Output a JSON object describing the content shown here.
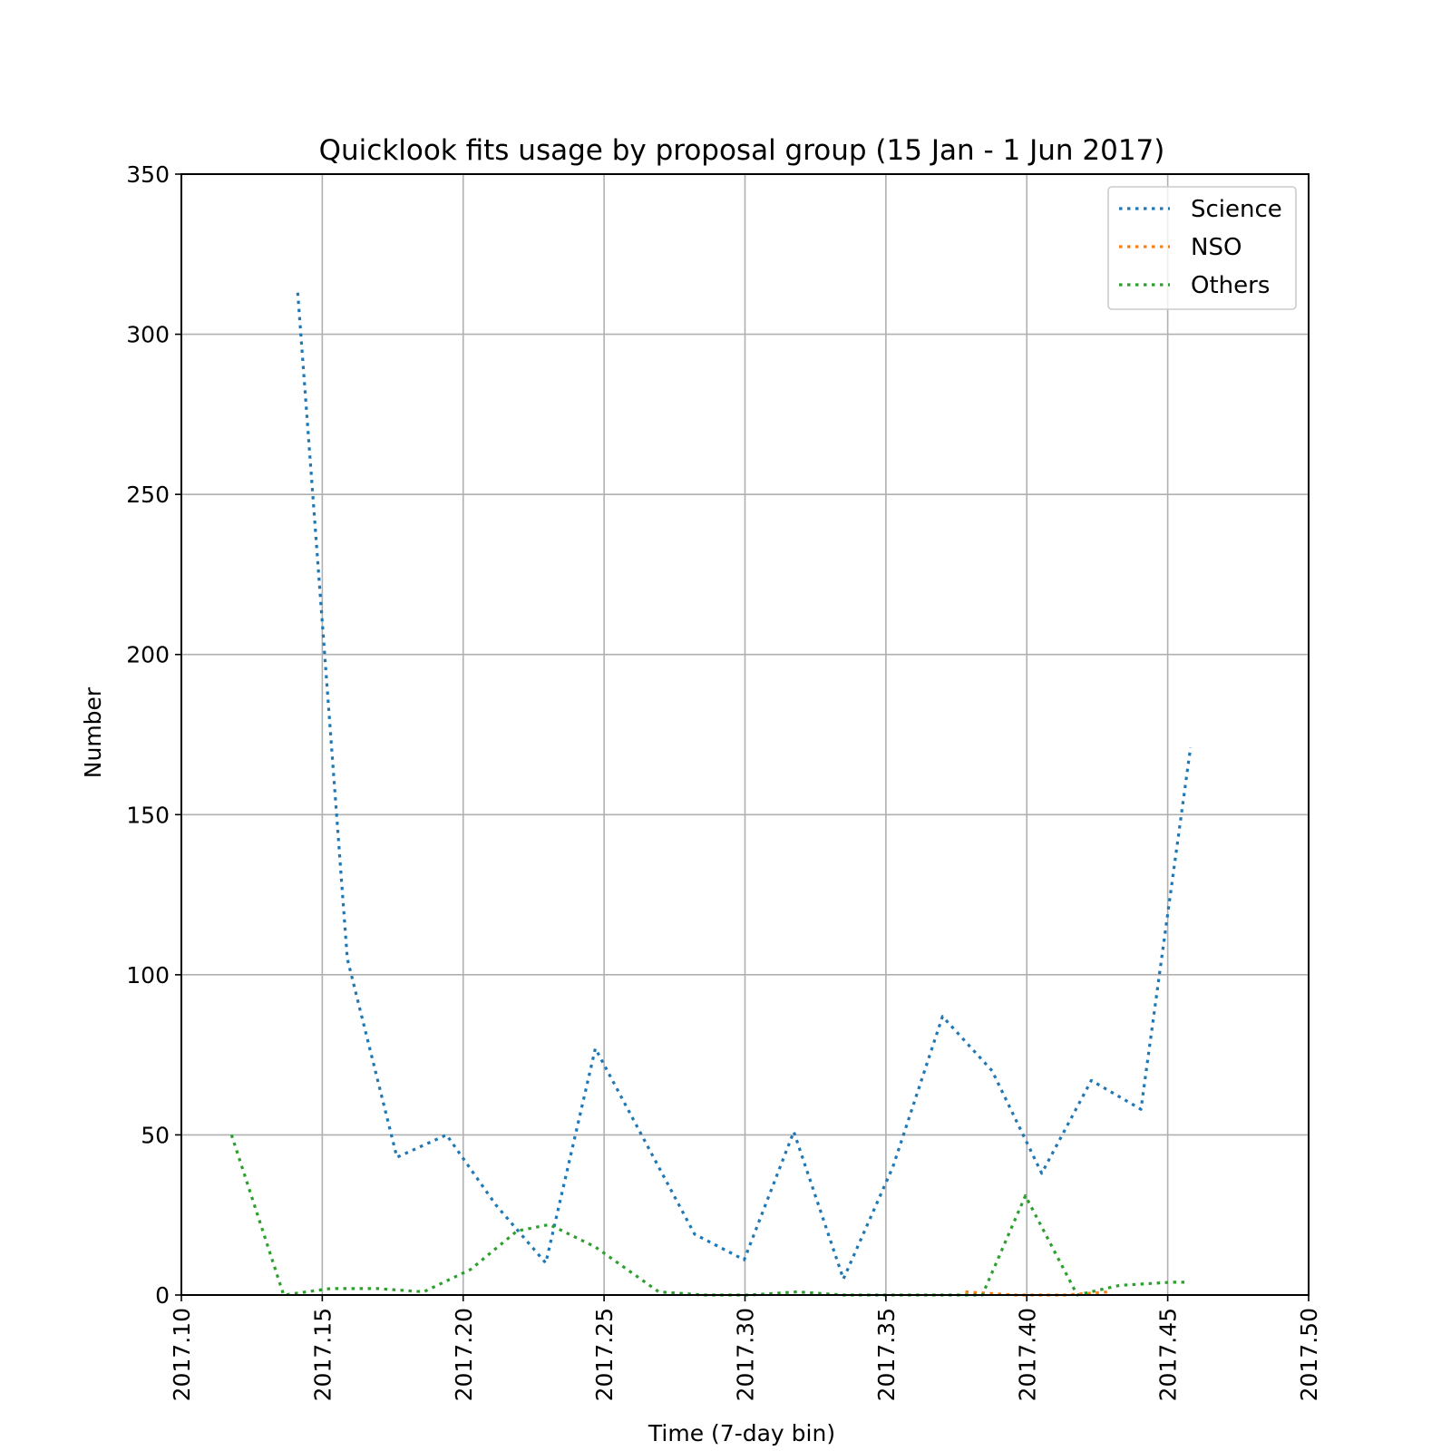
{
  "chart_data": {
    "type": "line",
    "title": "Quicklook fits usage by proposal group (15 Jan - 1 Jun 2017)",
    "xlabel": "Time (7-day bin)",
    "ylabel": "Number",
    "xlim": [
      2017.1,
      2017.5
    ],
    "ylim": [
      0,
      350
    ],
    "x_ticks": [
      "2017.10",
      "2017.15",
      "2017.20",
      "2017.25",
      "2017.30",
      "2017.35",
      "2017.40",
      "2017.45",
      "2017.50"
    ],
    "y_ticks": [
      "0",
      "50",
      "100",
      "150",
      "200",
      "250",
      "300",
      "350"
    ],
    "grid": true,
    "legend_position": "top-right",
    "line_style": "dotted",
    "series": [
      {
        "name": "Science",
        "color": "#1f77b4",
        "x": [
          2017.1413,
          2017.1589,
          2017.1765,
          2017.1941,
          2017.2117,
          2017.2293,
          2017.2469,
          2017.2645,
          2017.2821,
          2017.2997,
          2017.3173,
          2017.3349,
          2017.3525,
          2017.3701,
          2017.3877,
          2017.4053,
          2017.4229,
          2017.4405,
          2017.4581
        ],
        "y": [
          313,
          105,
          43,
          50,
          28,
          10,
          77,
          48,
          19,
          11,
          51,
          5,
          40,
          87,
          70,
          38,
          67,
          58,
          171
        ]
      },
      {
        "name": "NSO",
        "color": "#ff7f0e",
        "x": [
          2017.3782,
          2017.396,
          2017.4134,
          2017.4292
        ],
        "y": [
          1,
          0,
          0,
          1
        ]
      },
      {
        "name": "Others",
        "color": "#2ca02c",
        "x": [
          2017.1178,
          2017.1363,
          2017.1528,
          2017.1696,
          2017.186,
          2017.2027,
          2017.2191,
          2017.2306,
          2017.2469,
          2017.2694,
          2017.2853,
          2017.3017,
          2017.3185,
          2017.3349,
          2017.3516,
          2017.368,
          2017.3842,
          2017.3995,
          2017.4179,
          2017.4329,
          2017.4511,
          2017.456
        ],
        "y": [
          50,
          0,
          2,
          2,
          1,
          8,
          20,
          22,
          15,
          1,
          0,
          0,
          1,
          0,
          0,
          0,
          0,
          31,
          0,
          3,
          4,
          4
        ]
      }
    ]
  }
}
